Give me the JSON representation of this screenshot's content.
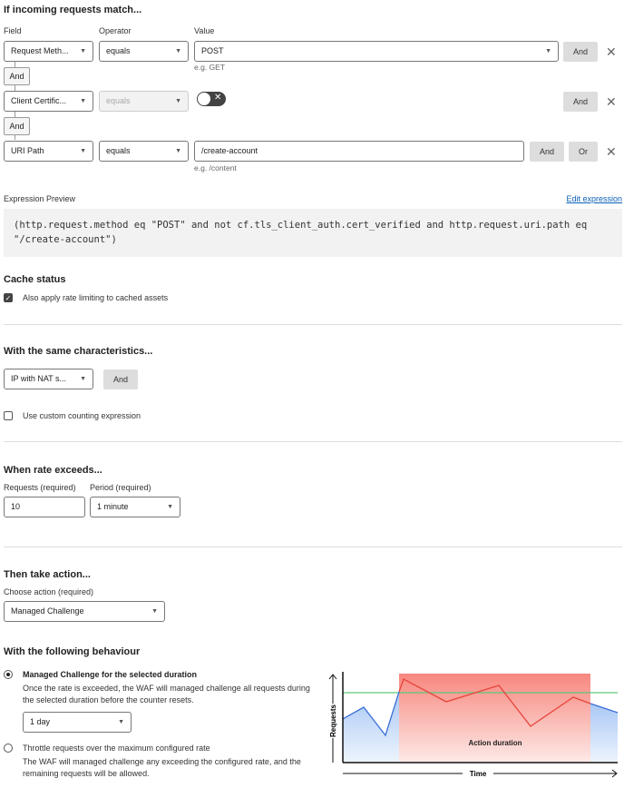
{
  "match": {
    "title": "If incoming requests match...",
    "field_label": "Field",
    "operator_label": "Operator",
    "value_label": "Value",
    "rows": [
      {
        "field": "Request Meth...",
        "operator": "equals",
        "value": "POST",
        "hint": "e.g. GET",
        "and": "And"
      },
      {
        "field": "Client Certific...",
        "operator": "equals",
        "toggle": false,
        "and": "And"
      },
      {
        "field": "URI Path",
        "operator": "equals",
        "value": "/create-account",
        "hint": "e.g. /content",
        "and": "And",
        "or": "Or"
      }
    ],
    "connector": "And"
  },
  "expression": {
    "label": "Expression Preview",
    "edit": "Edit expression",
    "text": "(http.request.method eq \"POST\" and not cf.tls_client_auth.cert_verified and http.request.uri.path eq \"/create-account\")"
  },
  "cache": {
    "title": "Cache status",
    "checkbox": "Also apply rate limiting to cached assets",
    "checked": true
  },
  "characteristics": {
    "title": "With the same characteristics...",
    "select": "IP with NAT s...",
    "and": "And",
    "custom": "Use custom counting expression",
    "custom_checked": false
  },
  "rate": {
    "title": "When rate exceeds...",
    "requests_label": "Requests (required)",
    "requests": "10",
    "period_label": "Period (required)",
    "period": "1 minute"
  },
  "action": {
    "title": "Then take action...",
    "choose_label": "Choose action (required)",
    "selected": "Managed Challenge"
  },
  "behaviour": {
    "title": "With the following behaviour",
    "opt1_title": "Managed Challenge for the selected duration",
    "opt1_desc": "Once the rate is exceeded, the WAF will managed challenge all requests during the selected duration before the counter resets.",
    "duration": "1 day",
    "opt2_title": "Throttle requests over the maximum configured rate",
    "opt2_desc": "The WAF will managed challenge any exceeding the configured rate, and the remaining requests will be allowed.",
    "selected": "opt1"
  },
  "diagram": {
    "y_label": "Requests",
    "x_label": "Time",
    "area_label": "Action duration",
    "colors": {
      "threshold": "#5cc97a",
      "requests": "#3b6fd9",
      "action": "#f05a50"
    }
  },
  "colors": {
    "link": "#0a5fb4"
  }
}
